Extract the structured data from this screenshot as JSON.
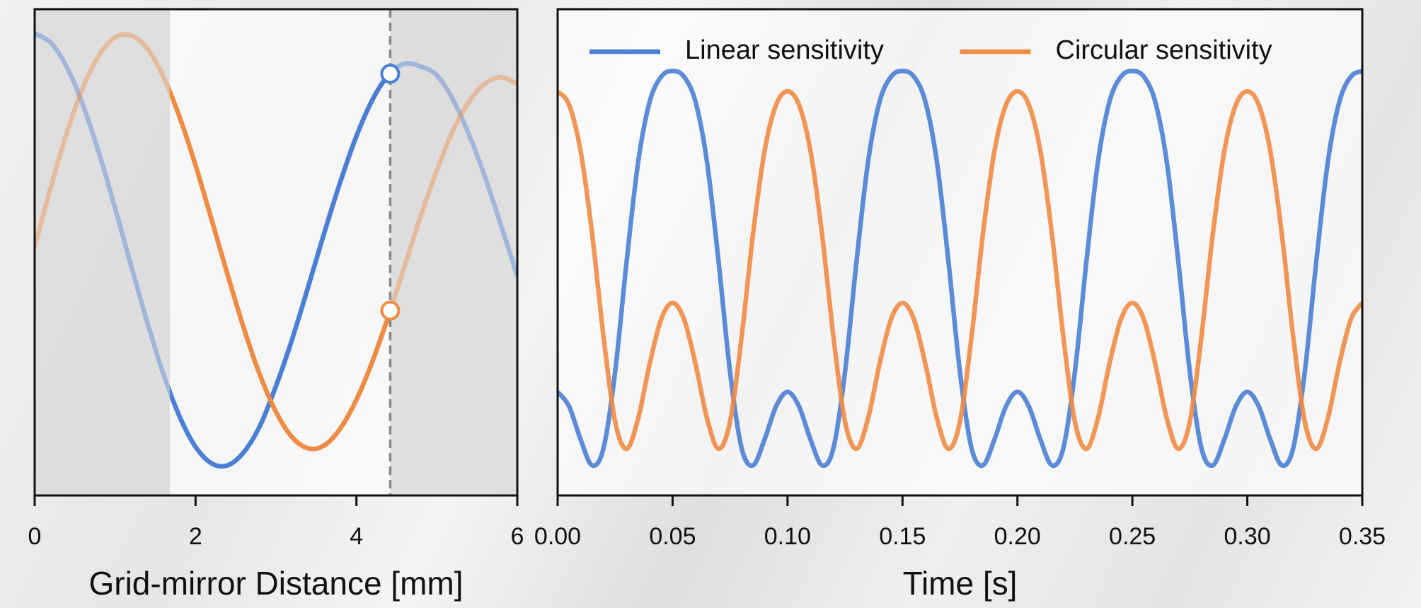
{
  "chart_data": [
    {
      "type": "line",
      "xlabel": "Grid-mirror Distance [mm]",
      "x": [
        0,
        0.2,
        0.4,
        0.6,
        0.8,
        1,
        1.2,
        1.4,
        1.6,
        1.8,
        2,
        2.2,
        2.4,
        2.6,
        2.8,
        3,
        3.2,
        3.4,
        3.6,
        3.8,
        4,
        4.2,
        4.4,
        4.6,
        4.8,
        5,
        5.2,
        5.4,
        5.6,
        5.8,
        6
      ],
      "xlim": [
        0,
        6
      ],
      "xticks": [
        0,
        2,
        4,
        6
      ],
      "ylim": [
        0,
        1
      ],
      "series": [
        {
          "color": "#4a7fd3",
          "values": [
            0.95,
            0.931,
            0.881,
            0.803,
            0.704,
            0.591,
            0.472,
            0.356,
            0.25,
            0.163,
            0.1,
            0.066,
            0.062,
            0.089,
            0.143,
            0.225,
            0.321,
            0.429,
            0.54,
            0.645,
            0.739,
            0.814,
            0.865,
            0.888,
            0.882,
            0.864,
            0.814,
            0.742,
            0.654,
            0.554,
            0.451
          ]
        },
        {
          "color": "#ee8b45",
          "values": [
            0.511,
            0.634,
            0.746,
            0.839,
            0.905,
            0.942,
            0.946,
            0.919,
            0.861,
            0.779,
            0.679,
            0.567,
            0.453,
            0.344,
            0.248,
            0.172,
            0.12,
            0.097,
            0.103,
            0.138,
            0.197,
            0.276,
            0.37,
            0.472,
            0.575,
            0.669,
            0.75,
            0.81,
            0.847,
            0.86,
            0.846
          ]
        }
      ],
      "shaded_regions": [
        [
          0,
          1.68
        ],
        [
          4.42,
          6
        ]
      ],
      "cursor_x": 4.42
    },
    {
      "type": "line",
      "xlabel": "Time [s]",
      "x": [
        0,
        0.005,
        0.01,
        0.015,
        0.02,
        0.025,
        0.03,
        0.035,
        0.04,
        0.045,
        0.05,
        0.055,
        0.06,
        0.065,
        0.07,
        0.075,
        0.08,
        0.085,
        0.09,
        0.095,
        0.1,
        0.105,
        0.11,
        0.115,
        0.12,
        0.125,
        0.13,
        0.135,
        0.14,
        0.145,
        0.15,
        0.155,
        0.16,
        0.165,
        0.17,
        0.175,
        0.18,
        0.185,
        0.19,
        0.195,
        0.2,
        0.205,
        0.21,
        0.215,
        0.22,
        0.225,
        0.23,
        0.235,
        0.24,
        0.245,
        0.25,
        0.255,
        0.26,
        0.265,
        0.27,
        0.275,
        0.28,
        0.285,
        0.29,
        0.295,
        0.3,
        0.305,
        0.31,
        0.315,
        0.32,
        0.325,
        0.33,
        0.335,
        0.34,
        0.345,
        0.35
      ],
      "xlim": [
        0,
        0.35
      ],
      "xticks": [
        {
          "value": 0,
          "label": "0.00"
        },
        0.05,
        {
          "value": 0.1,
          "label": "0.10"
        },
        0.15,
        {
          "value": 0.2,
          "label": "0.20"
        },
        0.25,
        {
          "value": 0.3,
          "label": "0.30"
        },
        0.35
      ],
      "ylim": [
        0,
        1
      ],
      "series": [
        {
          "name": "Linear sensitivity",
          "color": "#4a7fd3",
          "values": [
            0.213,
            0.183,
            0.115,
            0.062,
            0.098,
            0.254,
            0.481,
            0.685,
            0.809,
            0.861,
            0.873,
            0.861,
            0.809,
            0.685,
            0.481,
            0.254,
            0.098,
            0.062,
            0.115,
            0.183,
            0.213,
            0.183,
            0.115,
            0.062,
            0.098,
            0.254,
            0.481,
            0.685,
            0.809,
            0.861,
            0.873,
            0.861,
            0.809,
            0.685,
            0.481,
            0.254,
            0.098,
            0.062,
            0.115,
            0.183,
            0.213,
            0.183,
            0.115,
            0.062,
            0.098,
            0.254,
            0.481,
            0.685,
            0.809,
            0.861,
            0.873,
            0.861,
            0.809,
            0.685,
            0.481,
            0.254,
            0.098,
            0.062,
            0.115,
            0.183,
            0.213,
            0.183,
            0.115,
            0.062,
            0.098,
            0.254,
            0.481,
            0.685,
            0.809,
            0.861,
            0.873
          ]
        },
        {
          "name": "Circular sensitivity",
          "color": "#ee8b45",
          "values": [
            0.831,
            0.803,
            0.708,
            0.538,
            0.325,
            0.152,
            0.096,
            0.158,
            0.27,
            0.362,
            0.396,
            0.362,
            0.27,
            0.158,
            0.096,
            0.152,
            0.325,
            0.538,
            0.708,
            0.803,
            0.831,
            0.803,
            0.708,
            0.538,
            0.325,
            0.152,
            0.096,
            0.158,
            0.27,
            0.362,
            0.396,
            0.362,
            0.27,
            0.158,
            0.096,
            0.152,
            0.325,
            0.538,
            0.708,
            0.803,
            0.831,
            0.803,
            0.708,
            0.538,
            0.325,
            0.152,
            0.096,
            0.158,
            0.27,
            0.362,
            0.396,
            0.362,
            0.27,
            0.158,
            0.096,
            0.152,
            0.325,
            0.538,
            0.708,
            0.803,
            0.831,
            0.803,
            0.708,
            0.538,
            0.325,
            0.152,
            0.096,
            0.158,
            0.27,
            0.362,
            0.396
          ]
        }
      ],
      "legend": "top"
    }
  ]
}
